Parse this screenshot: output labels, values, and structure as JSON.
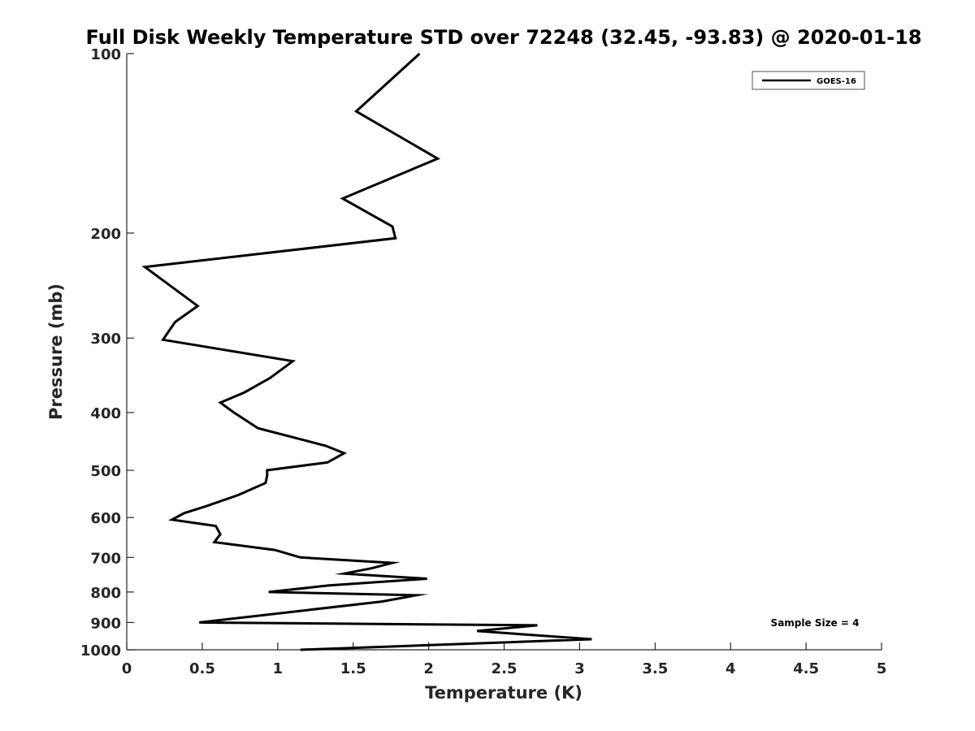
{
  "chart_data": {
    "type": "line",
    "title": "Full Disk Weekly Temperature STD over 72248 (32.45, -93.83) @ 2020-01-18",
    "xlabel": "Temperature (K)",
    "ylabel": "Pressure (mb)",
    "xlim": [
      0,
      5
    ],
    "ylim": [
      1000,
      100
    ],
    "y_scale": "log",
    "y_reversed": true,
    "xticks": [
      "0",
      "0.5",
      "1",
      "1.5",
      "2",
      "2.5",
      "3",
      "3.5",
      "4",
      "4.5",
      "5"
    ],
    "yticks": [
      "100",
      "200",
      "300",
      "400",
      "500",
      "600",
      "700",
      "800",
      "900",
      "1000"
    ],
    "grid": false,
    "legend_position": "top-right",
    "annotation": "Sample Size = 4",
    "series": [
      {
        "name": "GOES-16",
        "color": "#000000",
        "points": [
          [
            1.94,
            100
          ],
          [
            1.52,
            125
          ],
          [
            2.06,
            150
          ],
          [
            1.43,
            175
          ],
          [
            1.76,
            195
          ],
          [
            1.78,
            204
          ],
          [
            0.12,
            228
          ],
          [
            0.47,
            265
          ],
          [
            0.32,
            282
          ],
          [
            0.24,
            302
          ],
          [
            1.1,
            328
          ],
          [
            0.95,
            350
          ],
          [
            0.78,
            370
          ],
          [
            0.62,
            385
          ],
          [
            0.71,
            400
          ],
          [
            0.87,
            425
          ],
          [
            1.32,
            455
          ],
          [
            1.44,
            468
          ],
          [
            1.33,
            485
          ],
          [
            0.93,
            500
          ],
          [
            0.93,
            510
          ],
          [
            0.92,
            525
          ],
          [
            0.74,
            550
          ],
          [
            0.52,
            575
          ],
          [
            0.38,
            590
          ],
          [
            0.3,
            605
          ],
          [
            0.59,
            620
          ],
          [
            0.62,
            640
          ],
          [
            0.58,
            660
          ],
          [
            0.98,
            680
          ],
          [
            1.15,
            700
          ],
          [
            1.76,
            715
          ],
          [
            1.62,
            730
          ],
          [
            1.44,
            745
          ],
          [
            1.99,
            760
          ],
          [
            1.34,
            780
          ],
          [
            0.94,
            800
          ],
          [
            1.92,
            810
          ],
          [
            1.69,
            830
          ],
          [
            0.48,
            900
          ],
          [
            2.72,
            910
          ],
          [
            2.32,
            930
          ],
          [
            3.08,
            960
          ],
          [
            1.15,
            1000
          ]
        ]
      }
    ]
  }
}
